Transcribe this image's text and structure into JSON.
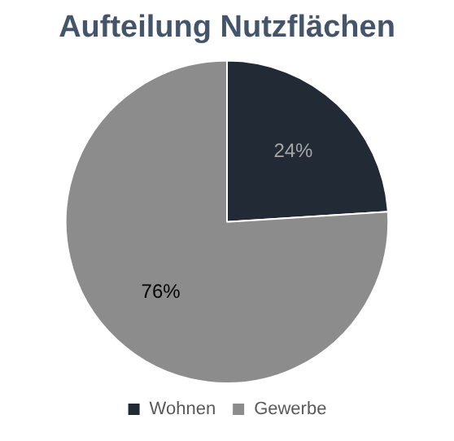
{
  "chart_data": {
    "type": "pie",
    "title": "Aufteilung Nutzflächen",
    "categories": [
      "Wohnen",
      "Gewerbe"
    ],
    "values": [
      24,
      76
    ],
    "colors": [
      "#222a35",
      "#8c8c8c"
    ],
    "value_labels": [
      "24%",
      "76%"
    ],
    "legend": "bottom"
  }
}
